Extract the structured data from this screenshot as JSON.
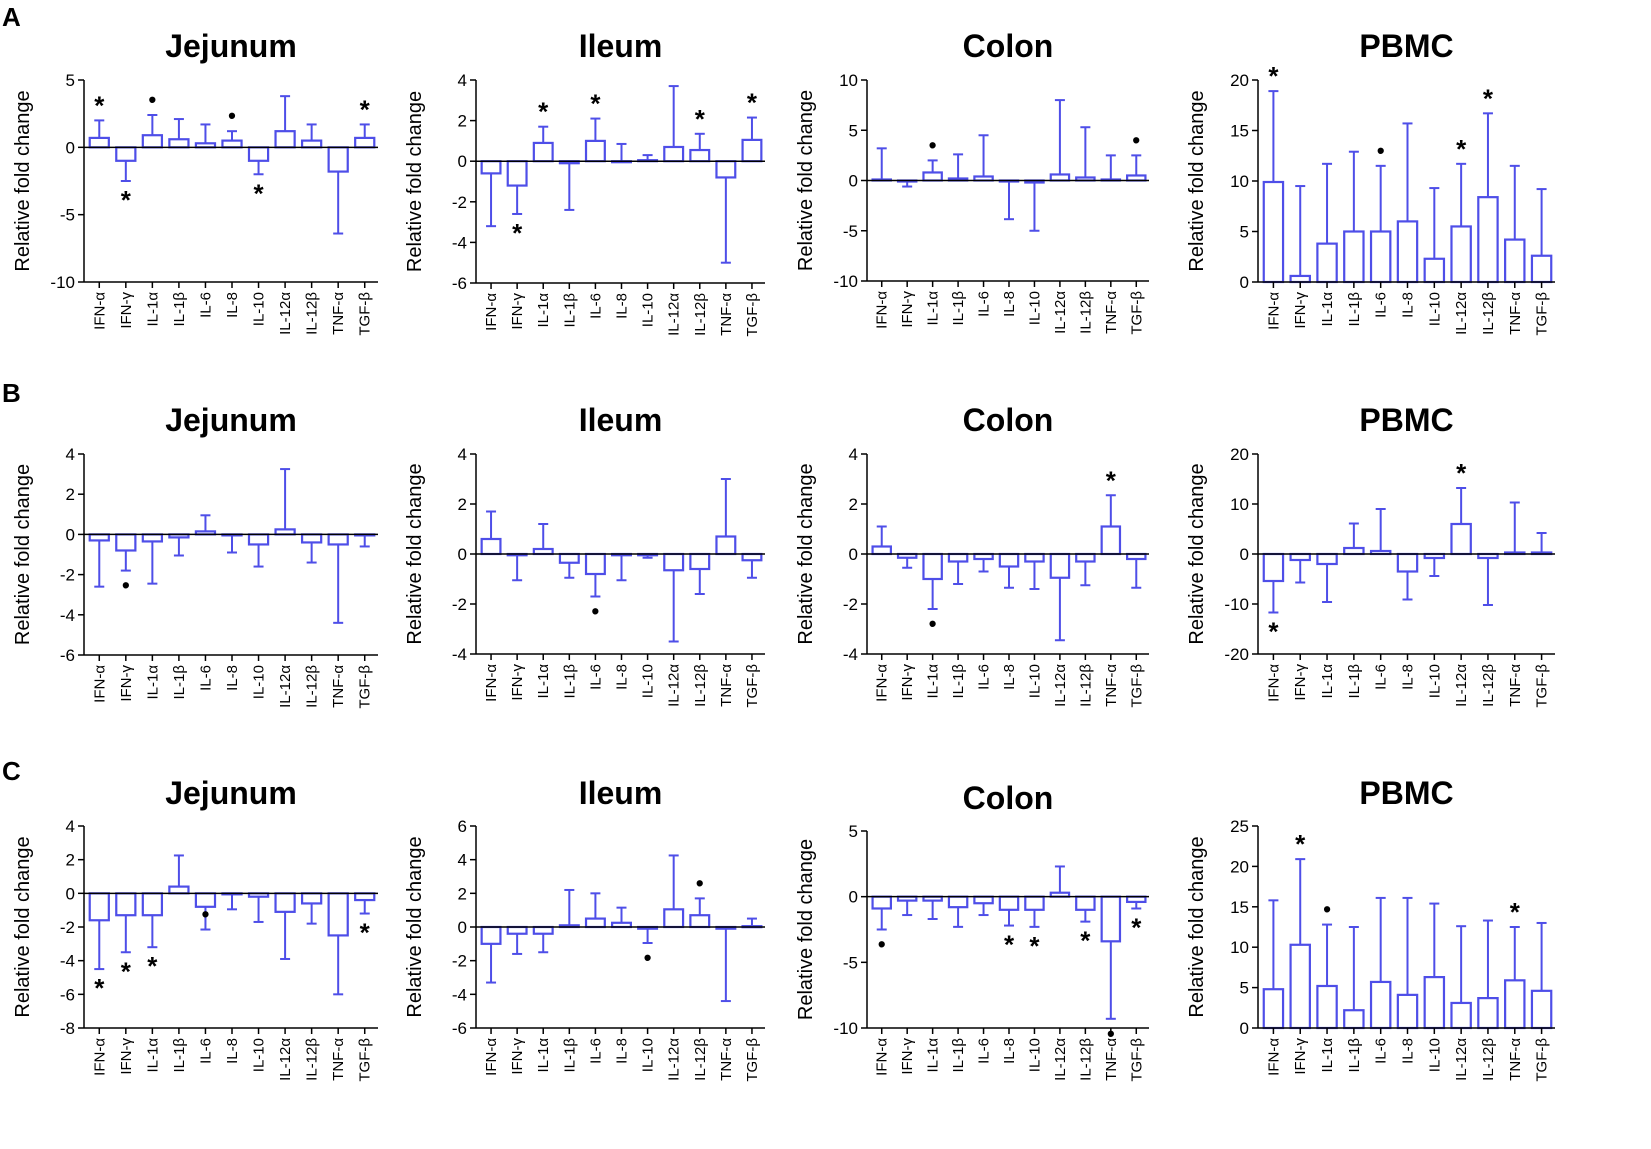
{
  "panel_labels": [
    "A",
    "B",
    "C"
  ],
  "colors": {
    "bar": "#4e4ee8",
    "axis": "#000000",
    "marker": "#000000"
  },
  "chart_data": [
    {
      "type": "bar",
      "panel": "A",
      "title": "Jejunum",
      "ylabel": "Relative fold change",
      "categories": [
        "IFN-α",
        "IFN-γ",
        "IL-1α",
        "IL-1β",
        "IL-6",
        "IL-8",
        "IL-10",
        "IL-12α",
        "IL-12β",
        "TNF-α",
        "TGF-β"
      ],
      "ylim": [
        -10,
        5
      ],
      "yticks": [
        5,
        0,
        -5,
        -10
      ],
      "values": [
        0.7,
        -1.0,
        0.9,
        0.6,
        0.3,
        0.5,
        -1.0,
        1.2,
        0.5,
        -1.8,
        0.7
      ],
      "errors": [
        1.3,
        1.5,
        1.5,
        1.5,
        1.4,
        0.7,
        1.0,
        2.6,
        1.2,
        4.6,
        1.0
      ],
      "markers": [
        {
          "category": "IFN-α",
          "symbol": "*",
          "side": "above"
        },
        {
          "category": "IFN-γ",
          "symbol": "*",
          "side": "below"
        },
        {
          "category": "IL-1α",
          "symbol": "•",
          "side": "above"
        },
        {
          "category": "IL-8",
          "symbol": "•",
          "side": "above"
        },
        {
          "category": "IL-10",
          "symbol": "*",
          "side": "below"
        },
        {
          "category": "TGF-β",
          "symbol": "*",
          "side": "above"
        }
      ]
    },
    {
      "type": "bar",
      "panel": "A",
      "title": "Ileum",
      "ylabel": "Relative fold change",
      "categories": [
        "IFN-α",
        "IFN-γ",
        "IL-1α",
        "IL-1β",
        "IL-6",
        "IL-8",
        "IL-10",
        "IL-12α",
        "IL-12β",
        "TNF-α",
        "TGF-β"
      ],
      "ylim": [
        -6,
        4
      ],
      "yticks": [
        4,
        2,
        0,
        -2,
        -4,
        -6
      ],
      "values": [
        -0.6,
        -1.2,
        0.9,
        -0.1,
        1.0,
        0.0,
        0.05,
        0.7,
        0.55,
        -0.8,
        1.05
      ],
      "errors": [
        2.6,
        1.4,
        0.8,
        2.3,
        1.1,
        0.85,
        0.25,
        3.0,
        0.8,
        4.2,
        1.1
      ],
      "markers": [
        {
          "category": "IFN-γ",
          "symbol": "*",
          "side": "below"
        },
        {
          "category": "IL-1α",
          "symbol": "*",
          "side": "above"
        },
        {
          "category": "IL-6",
          "symbol": "*",
          "side": "above"
        },
        {
          "category": "IL-12β",
          "symbol": "*",
          "side": "above"
        },
        {
          "category": "TGF-β",
          "symbol": "*",
          "side": "above"
        }
      ]
    },
    {
      "type": "bar",
      "panel": "A",
      "title": "Colon",
      "ylabel": "Relative fold change",
      "categories": [
        "IFN-α",
        "IFN-γ",
        "IL-1α",
        "IL-1β",
        "IL-6",
        "IL-8",
        "IL-10",
        "IL-12α",
        "IL-12β",
        "TNF-α",
        "TGF-β"
      ],
      "ylim": [
        -10,
        10
      ],
      "yticks": [
        10,
        5,
        0,
        -5,
        -10
      ],
      "values": [
        0.1,
        -0.1,
        0.8,
        0.2,
        0.4,
        -0.05,
        -0.2,
        0.6,
        0.3,
        0.1,
        0.5
      ],
      "errors": [
        3.1,
        0.5,
        1.2,
        2.4,
        4.1,
        3.8,
        4.8,
        7.4,
        5.0,
        2.4,
        2.0
      ],
      "markers": [
        {
          "category": "IL-1α",
          "symbol": "•",
          "side": "above"
        },
        {
          "category": "TGF-β",
          "symbol": "•",
          "side": "above"
        }
      ]
    },
    {
      "type": "bar",
      "panel": "A",
      "title": "PBMC",
      "ylabel": "Relative fold change",
      "categories": [
        "IFN-α",
        "IFN-γ",
        "IL-1α",
        "IL-1β",
        "IL-6",
        "IL-8",
        "IL-10",
        "IL-12α",
        "IL-12β",
        "TNF-α",
        "TGF-β"
      ],
      "ylim": [
        0,
        20
      ],
      "yticks": [
        20,
        15,
        10,
        5,
        0
      ],
      "values": [
        9.9,
        0.6,
        3.8,
        5.0,
        5.0,
        6.0,
        2.3,
        5.5,
        8.4,
        4.2,
        2.6
      ],
      "errors": [
        9.0,
        8.9,
        7.9,
        7.9,
        6.5,
        9.7,
        7.0,
        6.2,
        8.3,
        7.3,
        6.6
      ],
      "markers": [
        {
          "category": "IFN-α",
          "symbol": "*",
          "side": "above"
        },
        {
          "category": "IL-6",
          "symbol": "•",
          "side": "above"
        },
        {
          "category": "IL-12α",
          "symbol": "*",
          "side": "above"
        },
        {
          "category": "IL-12β",
          "symbol": "*",
          "side": "above"
        }
      ]
    },
    {
      "type": "bar",
      "panel": "B",
      "title": "Jejunum",
      "ylabel": "Relative fold change",
      "categories": [
        "IFN-α",
        "IFN-γ",
        "IL-1α",
        "IL-1β",
        "IL-6",
        "IL-8",
        "IL-10",
        "IL-12α",
        "IL-12β",
        "TNF-α",
        "TGF-β"
      ],
      "ylim": [
        -6,
        4
      ],
      "yticks": [
        4,
        2,
        0,
        -2,
        -4,
        -6
      ],
      "values": [
        -0.3,
        -0.8,
        -0.35,
        -0.15,
        0.15,
        -0.05,
        -0.5,
        0.25,
        -0.4,
        -0.5,
        -0.05
      ],
      "errors": [
        2.3,
        1.0,
        2.1,
        0.9,
        0.8,
        0.85,
        1.1,
        3.0,
        1.0,
        3.9,
        0.55
      ],
      "markers": [
        {
          "category": "IFN-γ",
          "symbol": "•",
          "side": "below"
        }
      ]
    },
    {
      "type": "bar",
      "panel": "B",
      "title": "Ileum",
      "ylabel": "Relative fold change",
      "categories": [
        "IFN-α",
        "IFN-γ",
        "IL-1α",
        "IL-1β",
        "IL-6",
        "IL-8",
        "IL-10",
        "IL-12α",
        "IL-12β",
        "TNF-α",
        "TGF-β"
      ],
      "ylim": [
        -4,
        4
      ],
      "yticks": [
        4,
        2,
        0,
        -2,
        -4
      ],
      "values": [
        0.6,
        -0.05,
        0.2,
        -0.35,
        -0.8,
        -0.05,
        -0.05,
        -0.65,
        -0.6,
        0.7,
        -0.25
      ],
      "errors": [
        1.1,
        1.0,
        1.0,
        0.6,
        0.9,
        1.0,
        0.1,
        2.85,
        1.0,
        2.3,
        0.7
      ],
      "markers": [
        {
          "category": "IL-6",
          "symbol": "•",
          "side": "below"
        }
      ]
    },
    {
      "type": "bar",
      "panel": "B",
      "title": "Colon",
      "ylabel": "Relative fold change",
      "categories": [
        "IFN-α",
        "IFN-γ",
        "IL-1α",
        "IL-1β",
        "IL-6",
        "IL-8",
        "IL-10",
        "IL-12α",
        "IL-12β",
        "TNF-α",
        "TGF-β"
      ],
      "ylim": [
        -4,
        4
      ],
      "yticks": [
        4,
        2,
        0,
        -2,
        -4
      ],
      "values": [
        0.3,
        -0.15,
        -1.0,
        -0.3,
        -0.2,
        -0.5,
        -0.3,
        -0.95,
        -0.3,
        1.1,
        -0.2
      ],
      "errors": [
        0.8,
        0.4,
        1.2,
        0.9,
        0.5,
        0.85,
        1.1,
        2.5,
        0.95,
        1.25,
        1.15
      ],
      "markers": [
        {
          "category": "IL-1α",
          "symbol": "•",
          "side": "below"
        },
        {
          "category": "TNF-α",
          "symbol": "*",
          "side": "above"
        }
      ]
    },
    {
      "type": "bar",
      "panel": "B",
      "title": "PBMC",
      "ylabel": "Relative fold change",
      "categories": [
        "IFN-α",
        "IFN-γ",
        "IL-1α",
        "IL-1β",
        "IL-6",
        "IL-8",
        "IL-10",
        "IL-12α",
        "IL-12β",
        "TNF-α",
        "TGF-β"
      ],
      "ylim": [
        -20,
        20
      ],
      "yticks": [
        20,
        10,
        0,
        -10,
        -20
      ],
      "values": [
        -5.4,
        -1.2,
        -2.0,
        1.2,
        0.6,
        -3.5,
        -0.8,
        6.0,
        -0.8,
        0.3,
        0.3
      ],
      "errors": [
        6.3,
        4.5,
        7.6,
        4.9,
        8.4,
        5.6,
        3.6,
        7.2,
        9.4,
        10.0,
        3.9
      ],
      "markers": [
        {
          "category": "IFN-α",
          "symbol": "*",
          "side": "below"
        },
        {
          "category": "IL-12α",
          "symbol": "*",
          "side": "above"
        }
      ]
    },
    {
      "type": "bar",
      "panel": "C",
      "title": "Jejunum",
      "ylabel": "Relative fold change",
      "categories": [
        "IFN-α",
        "IFN-γ",
        "IL-1α",
        "IL-1β",
        "IL-6",
        "IL-8",
        "IL-10",
        "IL-12α",
        "IL-12β",
        "TNF-α",
        "TGF-β"
      ],
      "ylim": [
        -8,
        4
      ],
      "yticks": [
        4,
        2,
        0,
        -2,
        -4,
        -6,
        -8
      ],
      "values": [
        -1.6,
        -1.3,
        -1.3,
        0.4,
        -0.8,
        -0.05,
        -0.2,
        -1.1,
        -0.6,
        -2.5,
        -0.4
      ],
      "errors": [
        2.9,
        2.2,
        1.9,
        1.85,
        1.35,
        0.9,
        1.5,
        2.8,
        1.2,
        3.5,
        0.8
      ],
      "markers": [
        {
          "category": "IFN-α",
          "symbol": "*",
          "side": "below"
        },
        {
          "category": "IFN-γ",
          "symbol": "*",
          "side": "below"
        },
        {
          "category": "IL-1α",
          "symbol": "*",
          "side": "below"
        },
        {
          "category": "IL-6",
          "symbol": "•",
          "side": "above"
        },
        {
          "category": "TGF-β",
          "symbol": "*",
          "side": "below"
        }
      ]
    },
    {
      "type": "bar",
      "panel": "C",
      "title": "Ileum",
      "ylabel": "Relative fold change",
      "categories": [
        "IFN-α",
        "IFN-γ",
        "IL-1α",
        "IL-1β",
        "IL-6",
        "IL-8",
        "IL-10",
        "IL-12α",
        "IL-12β",
        "TNF-α",
        "TGF-β"
      ],
      "ylim": [
        -6,
        6
      ],
      "yticks": [
        6,
        4,
        2,
        0,
        -2,
        -4,
        -6
      ],
      "values": [
        -1.0,
        -0.4,
        -0.4,
        0.1,
        0.5,
        0.25,
        -0.1,
        1.05,
        0.7,
        -0.1,
        0.05
      ],
      "errors": [
        2.3,
        1.2,
        1.1,
        2.1,
        1.5,
        0.9,
        0.85,
        3.2,
        1.0,
        4.3,
        0.45
      ],
      "markers": [
        {
          "category": "IL-10",
          "symbol": "•",
          "side": "below"
        },
        {
          "category": "IL-12β",
          "symbol": "•",
          "side": "above"
        }
      ]
    },
    {
      "type": "bar",
      "panel": "C",
      "title": "Colon",
      "ylabel": "Relative fold change",
      "categories": [
        "IFN-α",
        "IFN-γ",
        "IL-1α",
        "IL-1β",
        "IL-6",
        "IL-8",
        "IL-10",
        "IL-12α",
        "IL-12β",
        "TNF-α",
        "TGF-β"
      ],
      "ylim": [
        -10,
        5
      ],
      "yticks": [
        5,
        0,
        -5,
        -10
      ],
      "values": [
        -0.9,
        -0.3,
        -0.3,
        -0.8,
        -0.5,
        -1.0,
        -1.0,
        0.3,
        -1.0,
        -3.4,
        -0.4
      ],
      "errors": [
        1.6,
        1.1,
        1.4,
        1.5,
        0.9,
        1.2,
        1.3,
        2.0,
        0.9,
        5.9,
        0.5
      ],
      "markers": [
        {
          "category": "IFN-α",
          "symbol": "•",
          "side": "below"
        },
        {
          "category": "IL-8",
          "symbol": "*",
          "side": "below"
        },
        {
          "category": "IL-10",
          "symbol": "*",
          "side": "below"
        },
        {
          "category": "IL-12β",
          "symbol": "*",
          "side": "below"
        },
        {
          "category": "TNF-α",
          "symbol": "•",
          "side": "below"
        },
        {
          "category": "TGF-β",
          "symbol": "*",
          "side": "below"
        }
      ]
    },
    {
      "type": "bar",
      "panel": "C",
      "title": "PBMC",
      "ylabel": "Relative fold change",
      "categories": [
        "IFN-α",
        "IFN-γ",
        "IL-1α",
        "IL-1β",
        "IL-6",
        "IL-8",
        "IL-10",
        "IL-12α",
        "IL-12β",
        "TNF-α",
        "TGF-β"
      ],
      "ylim": [
        0,
        25
      ],
      "yticks": [
        25,
        20,
        15,
        10,
        5,
        0
      ],
      "values": [
        4.8,
        10.3,
        5.2,
        2.2,
        5.7,
        4.1,
        6.3,
        3.1,
        3.7,
        5.9,
        4.6
      ],
      "errors": [
        11.0,
        10.6,
        7.6,
        10.3,
        10.4,
        12.0,
        9.1,
        9.5,
        9.6,
        6.6,
        8.4
      ],
      "markers": [
        {
          "category": "IFN-γ",
          "symbol": "*",
          "side": "above"
        },
        {
          "category": "IL-1α",
          "symbol": "•",
          "side": "above"
        },
        {
          "category": "TNF-α",
          "symbol": "*",
          "side": "above"
        }
      ]
    }
  ]
}
